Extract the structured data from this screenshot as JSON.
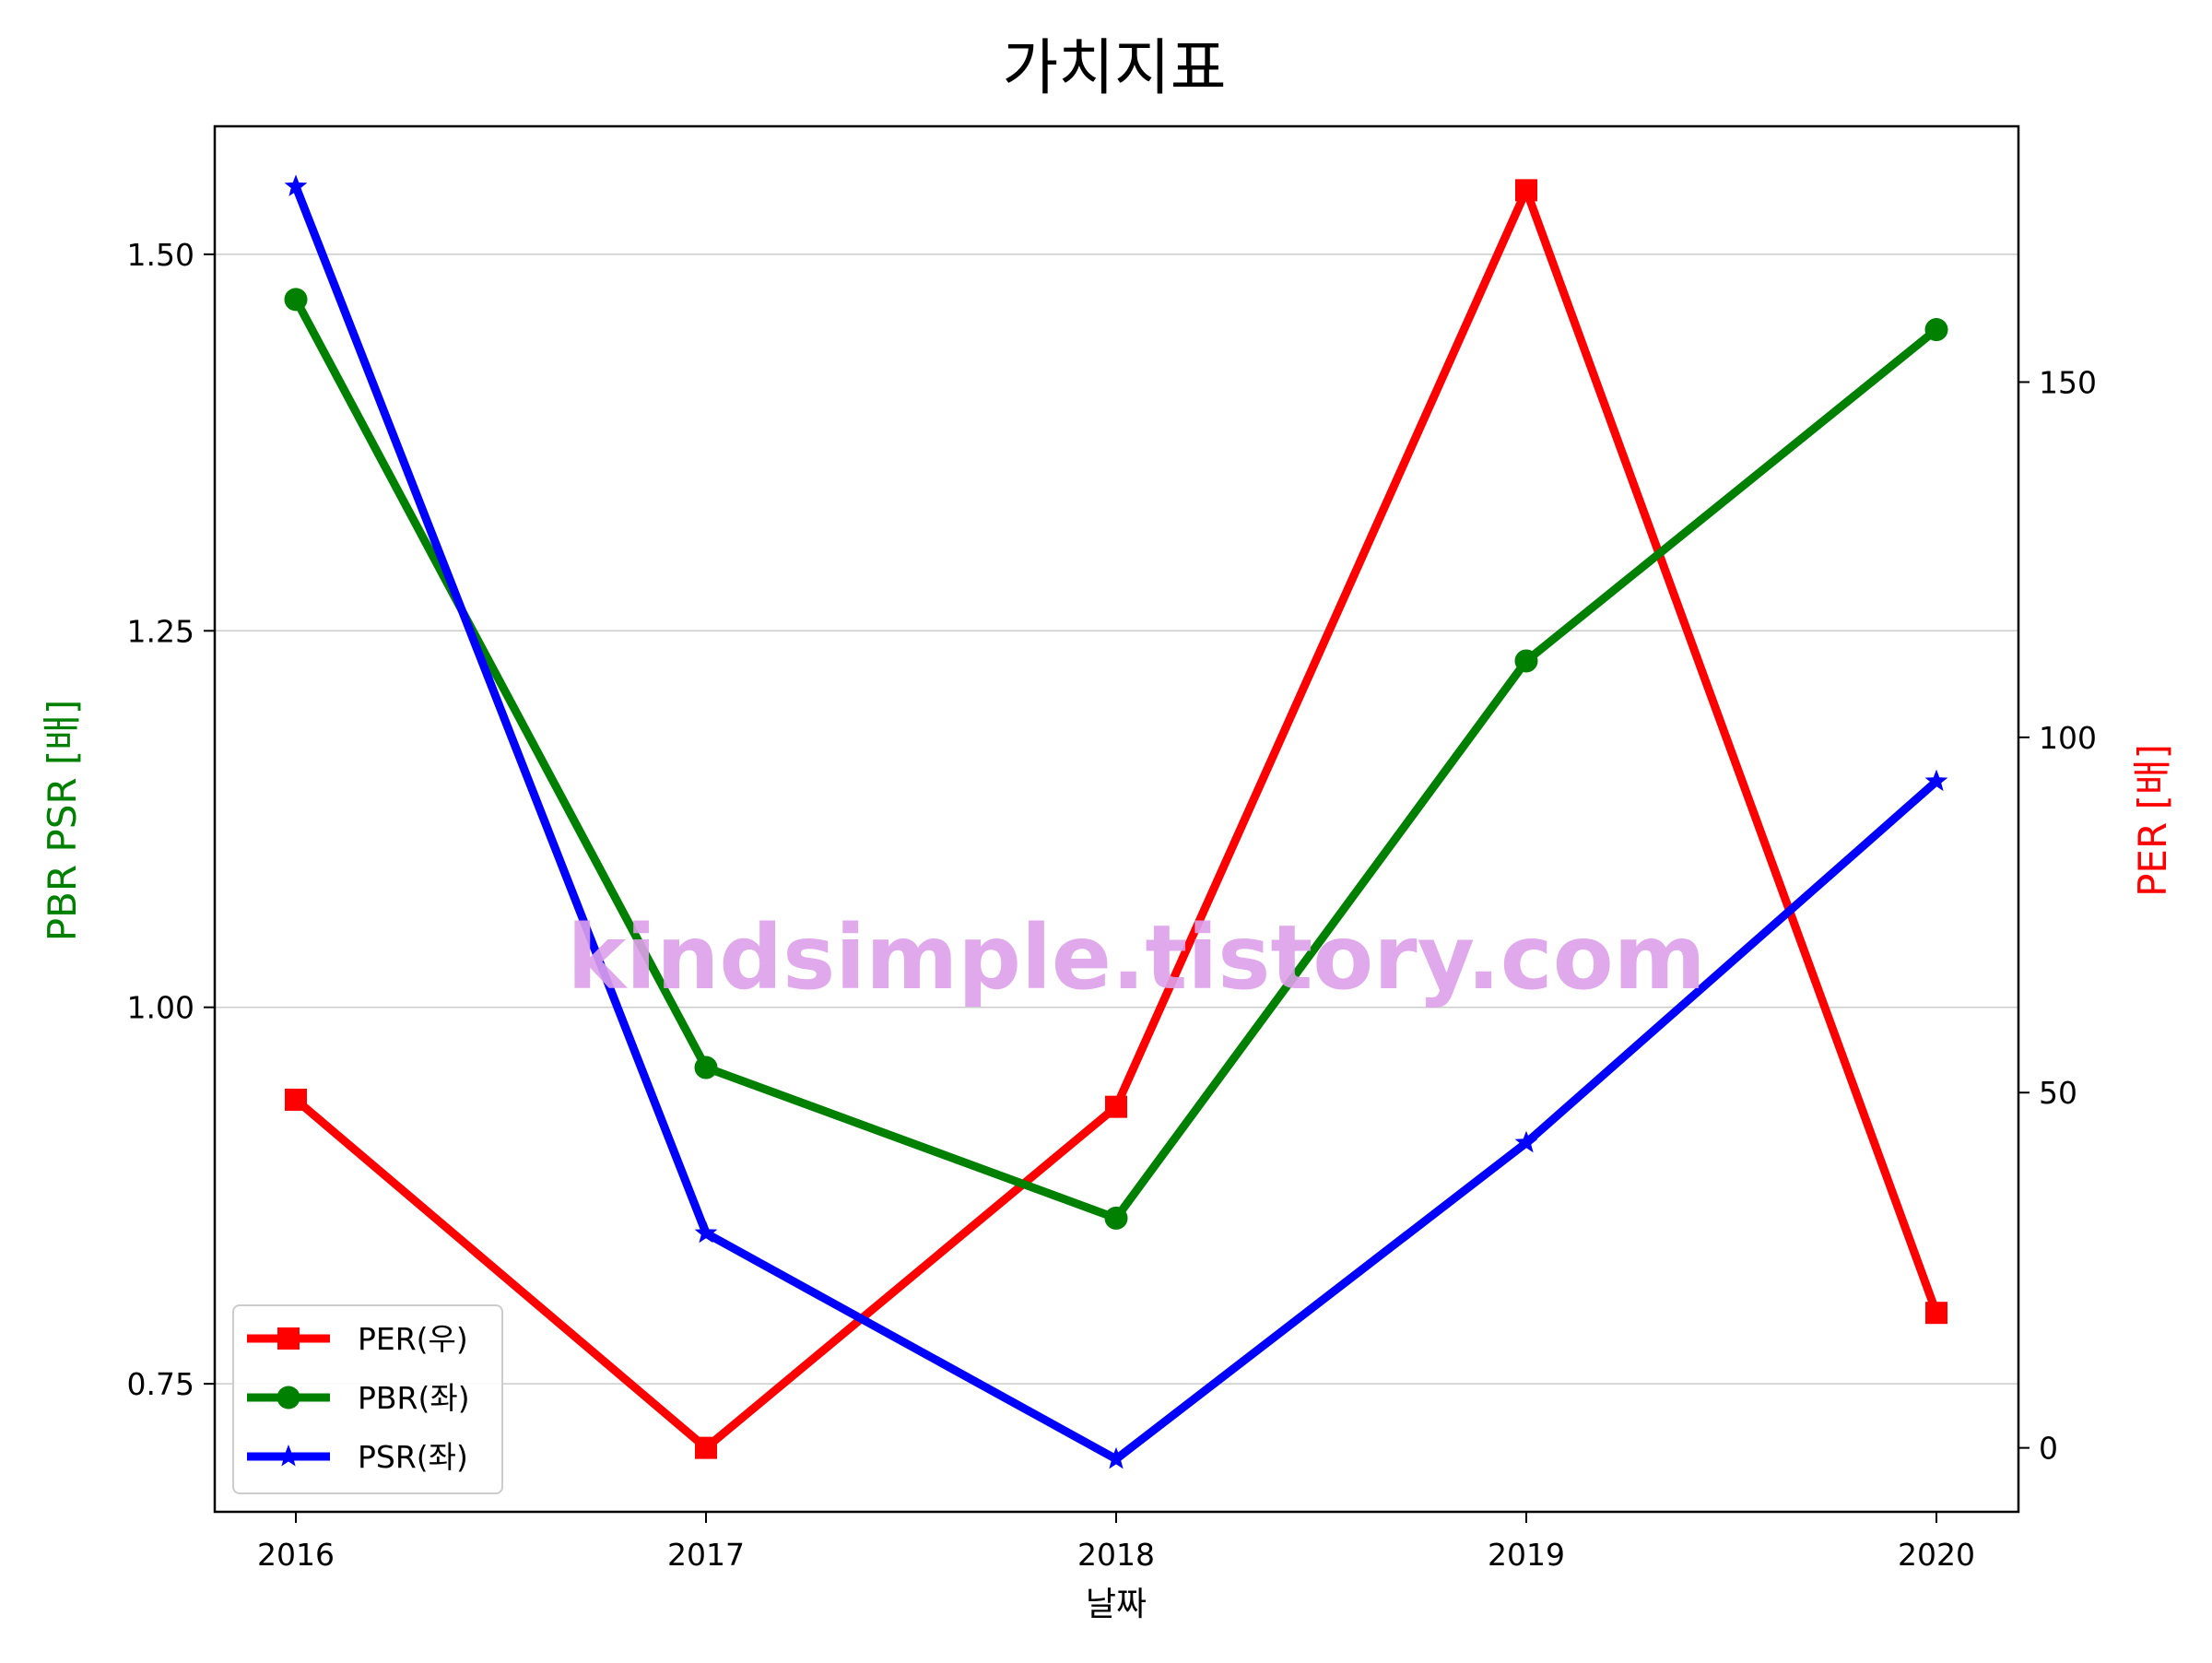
{
  "chart_data": {
    "type": "line",
    "title": "가치지표",
    "xlabel": "날짜",
    "ylabel_left": "PBR PSR [배]",
    "ylabel_right": "PER [배]",
    "categories": [
      "2016",
      "2017",
      "2018",
      "2019",
      "2020"
    ],
    "left_axis": {
      "range": [
        0.665,
        1.585
      ],
      "ticks": [
        0.75,
        1.0,
        1.25,
        1.5
      ],
      "tick_labels": [
        "0.75",
        "1.00",
        "1.25",
        "1.50"
      ]
    },
    "right_axis": {
      "range": [
        -9,
        186
      ],
      "ticks": [
        0,
        50,
        100,
        150
      ],
      "tick_labels": [
        "0",
        "50",
        "100",
        "150"
      ]
    },
    "grid": "horizontal",
    "legend_position": "lower-left",
    "series": [
      {
        "name": "PER(우)",
        "axis": "right",
        "color": "#ff0000",
        "marker": "square",
        "values": [
          49,
          0,
          48,
          177,
          19
        ]
      },
      {
        "name": "PBR(좌)",
        "axis": "left",
        "color": "#008000",
        "marker": "circle",
        "values": [
          1.47,
          0.96,
          0.86,
          1.23,
          1.45
        ]
      },
      {
        "name": "PSR(좌)",
        "axis": "left",
        "color": "#0000ff",
        "marker": "star",
        "values": [
          1.545,
          0.85,
          0.7,
          0.91,
          1.15
        ]
      }
    ],
    "watermark": "kindsimple.tistory.com"
  }
}
